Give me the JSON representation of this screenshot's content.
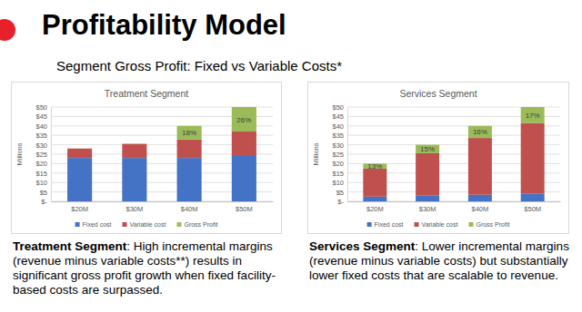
{
  "slide": {
    "title": "Profitability Model",
    "subtitle": "Segment Gross Profit: Fixed vs Variable Costs*",
    "captions": [
      {
        "heading": "Treatment Segment",
        "text": ": High incremental margins (revenue minus variable costs**) results in significant gross profit growth when fixed facility-based costs are surpassed."
      },
      {
        "heading": "Services Segment",
        "text": ": Lower incremental margins (revenue minus variable costs) but substantially lower fixed costs that are scalable to revenue."
      }
    ]
  },
  "chart_data": [
    {
      "type": "bar",
      "title": "Treatment Segment",
      "y_label": "Millions",
      "stacked": true,
      "grid": true,
      "legend": "bottom",
      "categories": [
        "$20M",
        "$30M",
        "$40M",
        "$50M"
      ],
      "series": [
        {
          "name": "Fixed cost",
          "color": "#4472c4",
          "values": [
            23,
            23,
            23,
            24.5
          ]
        },
        {
          "name": "Variable cost",
          "color": "#c0504d",
          "values": [
            5,
            7.5,
            9.8,
            12.5
          ]
        },
        {
          "name": "Gross Profit",
          "color": "#9bbb59",
          "values": [
            null,
            null,
            7.2,
            13
          ],
          "margin_labels": [
            null,
            null,
            "18%",
            "26%"
          ]
        }
      ],
      "ylim": [
        0,
        50
      ],
      "yticks": [
        {
          "value": 0,
          "label": "$-"
        },
        {
          "value": 5,
          "label": "$5"
        },
        {
          "value": 10,
          "label": "$10"
        },
        {
          "value": 15,
          "label": "$15"
        },
        {
          "value": 20,
          "label": "$20"
        },
        {
          "value": 25,
          "label": "$25"
        },
        {
          "value": 30,
          "label": "$30"
        },
        {
          "value": 35,
          "label": "$35"
        },
        {
          "value": 40,
          "label": "$40"
        },
        {
          "value": 45,
          "label": "$45"
        },
        {
          "value": 50,
          "label": "$50"
        }
      ]
    },
    {
      "type": "bar",
      "title": "Services Segment",
      "y_label": "Millions",
      "stacked": true,
      "grid": true,
      "legend": "bottom",
      "categories": [
        "$20M",
        "$30M",
        "$40M",
        "$50M"
      ],
      "series": [
        {
          "name": "Fixed cost",
          "color": "#4472c4",
          "values": [
            2.5,
            3,
            3.5,
            4
          ]
        },
        {
          "name": "Variable cost",
          "color": "#c0504d",
          "values": [
            14.9,
            22.5,
            30.1,
            37.5
          ]
        },
        {
          "name": "Gross Profit",
          "color": "#9bbb59",
          "values": [
            2.6,
            4.5,
            6.4,
            8.5
          ],
          "margin_labels": [
            "13%",
            "15%",
            "16%",
            "17%"
          ]
        }
      ],
      "ylim": [
        0,
        50
      ],
      "yticks": [
        {
          "value": 0,
          "label": "$-"
        },
        {
          "value": 5,
          "label": "$5"
        },
        {
          "value": 10,
          "label": "$10"
        },
        {
          "value": 15,
          "label": "$15"
        },
        {
          "value": 20,
          "label": "$20"
        },
        {
          "value": 25,
          "label": "$25"
        },
        {
          "value": 30,
          "label": "$30"
        },
        {
          "value": 35,
          "label": "$35"
        },
        {
          "value": 40,
          "label": "$40"
        },
        {
          "value": 45,
          "label": "$45"
        },
        {
          "value": 50,
          "label": "$50"
        }
      ]
    }
  ]
}
